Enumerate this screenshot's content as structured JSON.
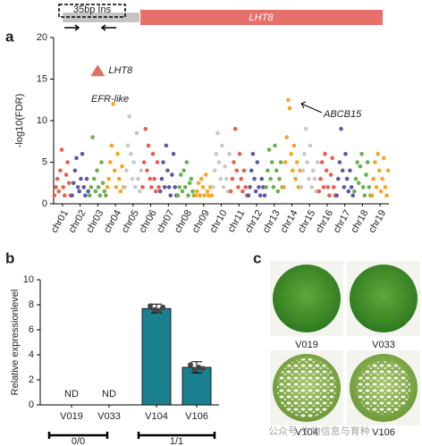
{
  "chart_data": [
    {
      "type": "manhattan",
      "panel": "a",
      "gene_model": {
        "insert_label": "35bp Ins",
        "gene_label": "LHT8"
      },
      "ylabel": "-log10(FDR)",
      "ylim": [
        0,
        20
      ],
      "yticks": [
        0,
        5,
        10,
        15,
        20
      ],
      "categories": [
        "chr01",
        "chr02",
        "chr03",
        "chr04",
        "chr05",
        "chr06",
        "chr07",
        "chr08",
        "chr09",
        "chr10",
        "chr11",
        "chr12",
        "chr13",
        "chr14",
        "chr15",
        "chr16",
        "chr17",
        "chr18",
        "chr19"
      ],
      "colors": [
        "#e8604c",
        "#5b5ba8",
        "#6ab04c",
        "#f5a623",
        "#c8c8c8",
        "#e8604c",
        "#5b5ba8",
        "#6ab04c",
        "#f5a623",
        "#c8c8c8",
        "#e8604c",
        "#5b5ba8",
        "#6ab04c",
        "#f5a623",
        "#c8c8c8",
        "#e8604c",
        "#5b5ba8",
        "#6ab04c",
        "#f5a623"
      ],
      "values": [
        [
          1,
          2,
          3,
          1.5,
          4,
          6.5,
          2,
          1,
          3.5,
          5,
          2.5,
          1
        ],
        [
          1,
          2.5,
          4,
          5.5,
          2,
          1.5,
          3,
          6,
          2,
          1,
          3,
          1.5
        ],
        [
          1,
          2,
          8,
          3,
          1.5,
          4,
          2,
          1,
          5,
          2.5,
          1.5,
          1
        ],
        [
          2,
          3,
          5,
          7,
          12,
          4,
          2,
          6,
          3,
          1.5,
          4.5,
          2
        ],
        [
          2,
          4,
          7,
          10.5,
          6,
          3,
          5,
          2,
          8.5,
          3,
          1.5,
          4
        ],
        [
          2,
          5,
          9,
          4,
          7,
          3,
          2,
          6,
          3,
          1.5,
          5,
          2
        ],
        [
          1.5,
          3,
          5,
          2,
          7,
          4,
          2,
          1,
          3.5,
          6,
          2,
          1
        ],
        [
          1,
          2,
          3.5,
          1.5,
          4,
          2,
          5,
          1,
          2.5,
          3,
          1.5,
          1
        ],
        [
          1,
          1.5,
          2.5,
          1,
          3,
          2,
          1,
          3.5,
          1.5,
          1,
          2,
          1
        ],
        [
          2,
          4,
          6,
          8.5,
          5,
          3,
          7,
          2,
          4.5,
          3,
          1.5,
          6
        ],
        [
          1.5,
          3,
          5,
          9,
          4,
          2,
          6,
          3,
          1.5,
          4,
          2,
          1
        ],
        [
          1,
          2,
          4,
          6,
          3,
          1.5,
          5,
          2,
          1,
          3,
          2,
          1
        ],
        [
          2,
          4,
          6.5,
          3,
          5,
          2,
          7,
          4,
          1.5,
          3,
          5,
          2
        ],
        [
          2,
          5,
          8,
          12.5,
          11.5,
          6,
          4,
          7,
          3,
          5,
          2,
          4
        ],
        [
          2,
          4,
          6,
          9,
          5,
          3,
          7,
          2,
          4,
          3,
          1.5,
          5
        ],
        [
          1.5,
          3,
          5,
          2,
          6,
          4,
          2,
          1,
          3.5,
          5.5,
          2,
          1
        ],
        [
          1,
          3,
          5,
          9,
          4,
          2,
          6,
          3,
          1.5,
          4,
          2,
          1
        ],
        [
          1.5,
          3,
          5,
          2.5,
          4.5,
          6,
          2,
          1,
          3.5,
          5,
          2,
          1
        ],
        [
          1,
          3,
          5,
          2,
          6,
          4,
          1.5,
          3,
          5.5,
          2,
          1,
          4
        ]
      ],
      "highlight": {
        "category": "chr03",
        "value": 16,
        "label": "LHT8",
        "color": "#e07060"
      },
      "annotations": [
        "EFR-like",
        "ABCB15"
      ]
    },
    {
      "type": "bar",
      "panel": "b",
      "ylabel": "Relative expressionlevel",
      "ylim": [
        0,
        10
      ],
      "yticks": [
        0,
        2,
        4,
        6,
        8,
        10
      ],
      "categories": [
        "V019",
        "V033",
        "V104",
        "V106"
      ],
      "values": [
        null,
        null,
        7.7,
        3.0
      ],
      "value_labels": [
        "ND",
        "ND",
        null,
        null
      ],
      "errors": [
        null,
        null,
        0.35,
        0.45
      ],
      "replicates": [
        [],
        [],
        [
          7.9,
          7.6,
          7.5,
          7.8
        ],
        [
          3.2,
          2.8,
          3.0,
          2.9
        ]
      ],
      "color": "#1a7f8e",
      "groups": [
        "0/0",
        "1/1"
      ]
    },
    {
      "type": "photos",
      "panel": "c",
      "captions": [
        "V019",
        "V033",
        "V104",
        "V106"
      ],
      "watermark": "公众号·生物信息与育种"
    }
  ]
}
